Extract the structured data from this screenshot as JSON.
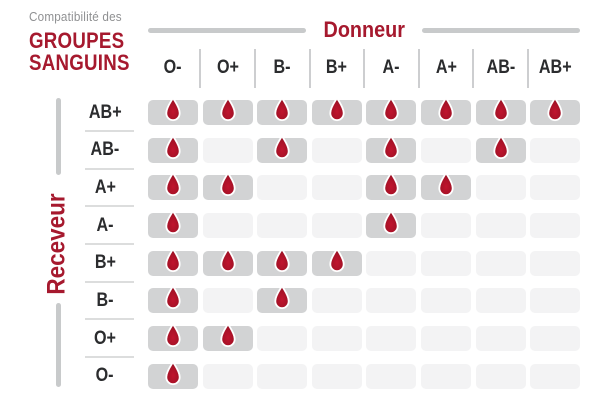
{
  "title": {
    "kicker": "Compatibilité des",
    "line1": "GROUPES",
    "line2": "SANGUINS"
  },
  "axes": {
    "donor_label": "Donneur",
    "receiver_label": "Receveur"
  },
  "chart_data": {
    "type": "heatmap",
    "title": "Compatibilité des groupes sanguins",
    "x_axis_label": "Donneur",
    "y_axis_label": "Receveur",
    "columns": [
      "O-",
      "O+",
      "B-",
      "B+",
      "A-",
      "A+",
      "AB-",
      "AB+"
    ],
    "rows": [
      "AB+",
      "AB-",
      "A+",
      "A-",
      "B+",
      "B-",
      "O+",
      "O-"
    ],
    "matrix": [
      [
        1,
        1,
        1,
        1,
        1,
        1,
        1,
        1
      ],
      [
        1,
        0,
        1,
        0,
        1,
        0,
        1,
        0
      ],
      [
        1,
        1,
        0,
        0,
        1,
        1,
        0,
        0
      ],
      [
        1,
        0,
        0,
        0,
        1,
        0,
        0,
        0
      ],
      [
        1,
        1,
        1,
        1,
        0,
        0,
        0,
        0
      ],
      [
        1,
        0,
        1,
        0,
        0,
        0,
        0,
        0
      ],
      [
        1,
        1,
        0,
        0,
        0,
        0,
        0,
        0
      ],
      [
        1,
        0,
        0,
        0,
        0,
        0,
        0,
        0
      ]
    ],
    "marker": "blood-drop-icon"
  },
  "colors": {
    "accent_red": "#a6192e",
    "drop_red_center": "#c0142e",
    "drop_red_mid": "#a81227",
    "drop_red_edge": "#8c0f21",
    "compatible_cell_bg": "#d2d3d4",
    "incompatible_cell_bg": "#f3f3f4",
    "kicker_gray": "#8f9092",
    "label_dark": "#2b2c2e",
    "separator_gray": "#cdced0",
    "row_separator_gray": "#dcdddd",
    "bar_gray": "#c8cacb"
  }
}
